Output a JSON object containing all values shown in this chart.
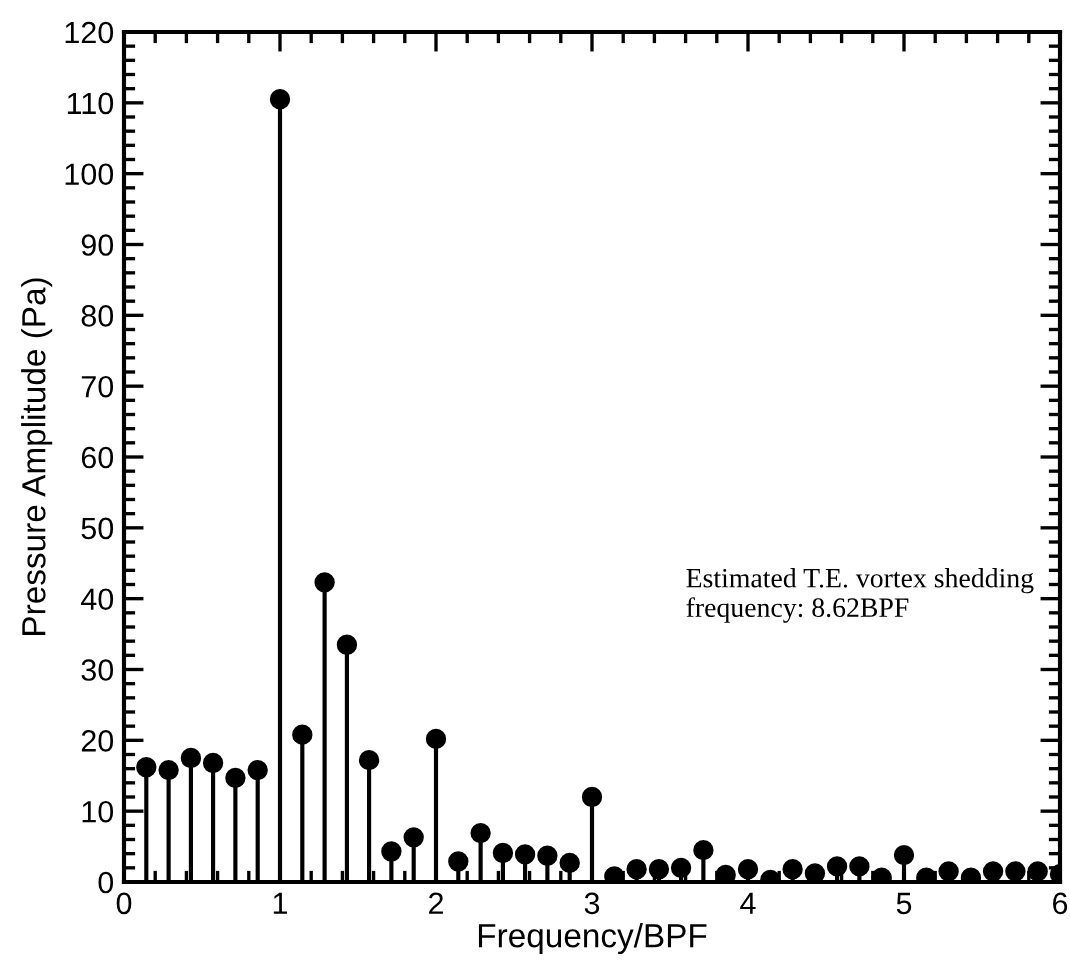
{
  "chart_data": {
    "type": "lollipop",
    "xlabel": "Frequency/BPF",
    "ylabel": "Pressure Amplitude (Pa)",
    "annotations": [
      "Estimated T.E. vortex shedding\nfrequency: 8.62BPF"
    ],
    "x": [
      0.143,
      0.286,
      0.429,
      0.571,
      0.714,
      0.857,
      1.0,
      1.143,
      1.286,
      1.429,
      1.571,
      1.714,
      1.857,
      2.0,
      2.143,
      2.286,
      2.429,
      2.571,
      2.714,
      2.857,
      3.0,
      3.143,
      3.286,
      3.429,
      3.571,
      3.714,
      3.857,
      4.0,
      4.143,
      4.286,
      4.429,
      4.571,
      4.714,
      4.857,
      5.0,
      5.143,
      5.286,
      5.429,
      5.571,
      5.714,
      5.857,
      6.0
    ],
    "series": [
      {
        "color": "#000000",
        "values": [
          16.2,
          15.8,
          17.5,
          16.8,
          14.7,
          15.8,
          110.5,
          20.8,
          42.3,
          33.5,
          17.2,
          4.3,
          6.3,
          20.2,
          2.9,
          6.9,
          4.1,
          3.9,
          3.7,
          2.7,
          12,
          0.8,
          1.8,
          1.8,
          2.0,
          4.5,
          1.0,
          1.8,
          0.3,
          1.8,
          1.2,
          2.2,
          2.2,
          0.6,
          3.8,
          0.6,
          1.5,
          0.6,
          1.5,
          1.5,
          1.5,
          1.1
        ]
      }
    ],
    "marker": "circle",
    "xlim": [
      0,
      6
    ],
    "xticks": [
      0,
      1,
      2,
      3,
      4,
      5,
      6
    ],
    "ylim": [
      0,
      120
    ],
    "yticks": [
      0,
      10,
      20,
      30,
      40,
      50,
      60,
      70,
      80,
      90,
      100,
      110,
      120
    ],
    "legend": false
  }
}
